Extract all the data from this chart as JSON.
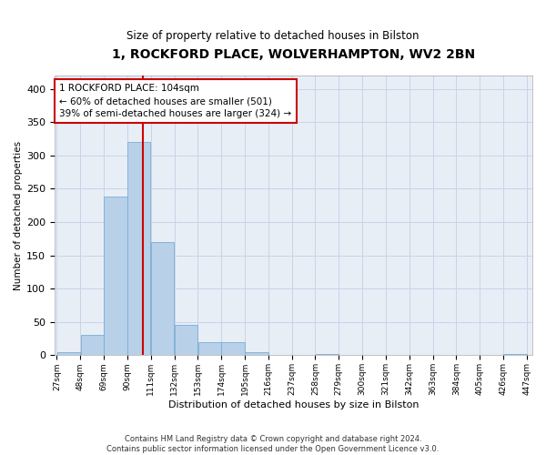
{
  "title": "1, ROCKFORD PLACE, WOLVERHAMPTON, WV2 2BN",
  "subtitle": "Size of property relative to detached houses in Bilston",
  "xlabel": "Distribution of detached houses by size in Bilston",
  "ylabel": "Number of detached properties",
  "footer_line1": "Contains HM Land Registry data © Crown copyright and database right 2024.",
  "footer_line2": "Contains public sector information licensed under the Open Government Licence v3.0.",
  "bins": [
    27,
    48,
    69,
    90,
    111,
    132,
    153,
    174,
    195,
    216,
    237,
    258,
    279,
    300,
    321,
    342,
    363,
    384,
    405,
    426,
    447
  ],
  "bar_heights": [
    5,
    30,
    238,
    320,
    170,
    45,
    20,
    20,
    5,
    0,
    0,
    2,
    0,
    1,
    0,
    0,
    0,
    0,
    0,
    2
  ],
  "bar_color": "#b8d0e8",
  "bar_edge_color": "#7aaed4",
  "grid_color": "#c8d4e8",
  "background_color": "#e8eef6",
  "property_size": 104,
  "annotation_line1": "1 ROCKFORD PLACE: 104sqm",
  "annotation_line2": "← 60% of detached houses are smaller (501)",
  "annotation_line3": "39% of semi-detached houses are larger (324) →",
  "annotation_box_color": "#ffffff",
  "annotation_box_edge_color": "#cc0000",
  "vline_color": "#cc0000",
  "ylim": [
    0,
    420
  ],
  "yticks": [
    0,
    50,
    100,
    150,
    200,
    250,
    300,
    350,
    400
  ]
}
